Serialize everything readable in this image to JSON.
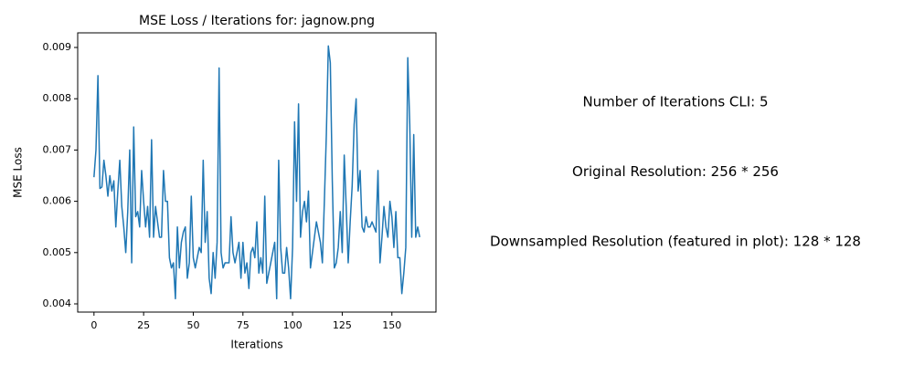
{
  "chart_data": {
    "type": "line",
    "title": "MSE Loss / Iterations for: jagnow.png",
    "xlabel": "Iterations",
    "ylabel": "MSE Loss",
    "annotations": [
      "Number of Iterations CLI: 5",
      "Original Resolution: 256 * 256",
      "Downsampled Resolution (featured in plot): 128 * 128"
    ],
    "color": "#1f77b4",
    "xlim": [
      -8.2,
      172.2
    ],
    "ylim": [
      0.00384,
      0.009285
    ],
    "xticks": [
      0,
      25,
      50,
      75,
      100,
      125,
      150
    ],
    "yticks": [
      0.004,
      0.005,
      0.006,
      0.007,
      0.008,
      0.009
    ],
    "x": [
      0,
      1,
      2,
      3,
      4,
      5,
      6,
      7,
      8,
      9,
      10,
      11,
      12,
      13,
      14,
      15,
      16,
      17,
      18,
      19,
      20,
      21,
      22,
      23,
      24,
      25,
      26,
      27,
      28,
      29,
      30,
      31,
      32,
      33,
      34,
      35,
      36,
      37,
      38,
      39,
      40,
      41,
      42,
      43,
      44,
      45,
      46,
      47,
      48,
      49,
      50,
      51,
      52,
      53,
      54,
      55,
      56,
      57,
      58,
      59,
      60,
      61,
      62,
      63,
      64,
      65,
      66,
      67,
      68,
      69,
      70,
      71,
      72,
      73,
      74,
      75,
      76,
      77,
      78,
      79,
      80,
      81,
      82,
      83,
      84,
      85,
      86,
      87,
      88,
      89,
      90,
      91,
      92,
      93,
      94,
      95,
      96,
      97,
      98,
      99,
      100,
      101,
      102,
      103,
      104,
      105,
      106,
      107,
      108,
      109,
      110,
      111,
      112,
      113,
      114,
      115,
      116,
      117,
      118,
      119,
      120,
      121,
      122,
      123,
      124,
      125,
      126,
      127,
      128,
      129,
      130,
      131,
      132,
      133,
      134,
      135,
      136,
      137,
      138,
      139,
      140,
      141,
      142,
      143,
      144,
      145,
      146,
      147,
      148,
      149,
      150,
      151,
      152,
      153,
      154,
      155,
      156,
      157,
      158,
      159,
      160,
      161,
      162,
      163,
      164
    ],
    "values": [
      0.00647,
      0.007,
      0.00845,
      0.00625,
      0.00628,
      0.0068,
      0.0065,
      0.0061,
      0.0065,
      0.0062,
      0.0064,
      0.0055,
      0.0062,
      0.0068,
      0.0059,
      0.0055,
      0.005,
      0.0058,
      0.007,
      0.0048,
      0.00745,
      0.0057,
      0.0058,
      0.0055,
      0.0066,
      0.006,
      0.0055,
      0.0059,
      0.0053,
      0.0072,
      0.0053,
      0.0059,
      0.0056,
      0.0053,
      0.0053,
      0.0066,
      0.006,
      0.006,
      0.0049,
      0.0047,
      0.0048,
      0.0041,
      0.0055,
      0.0047,
      0.0052,
      0.0054,
      0.0055,
      0.0045,
      0.0048,
      0.0061,
      0.0049,
      0.0047,
      0.0049,
      0.0051,
      0.005,
      0.0068,
      0.0052,
      0.0058,
      0.0045,
      0.0042,
      0.005,
      0.0045,
      0.0052,
      0.0086,
      0.005,
      0.0047,
      0.0048,
      0.0048,
      0.0048,
      0.0057,
      0.005,
      0.0048,
      0.005,
      0.0052,
      0.0045,
      0.0052,
      0.0046,
      0.0048,
      0.0043,
      0.005,
      0.0051,
      0.0049,
      0.0056,
      0.0046,
      0.0049,
      0.0046,
      0.0061,
      0.0044,
      0.0046,
      0.0048,
      0.005,
      0.0052,
      0.0041,
      0.0068,
      0.0051,
      0.0046,
      0.0046,
      0.0051,
      0.0047,
      0.0041,
      0.0051,
      0.00755,
      0.006,
      0.0079,
      0.0053,
      0.0058,
      0.006,
      0.0056,
      0.0062,
      0.0047,
      0.005,
      0.0053,
      0.0056,
      0.0054,
      0.0052,
      0.0048,
      0.006,
      0.0073,
      0.00903,
      0.0087,
      0.0064,
      0.0047,
      0.0048,
      0.0051,
      0.0058,
      0.005,
      0.0069,
      0.0059,
      0.0048,
      0.0056,
      0.0063,
      0.0075,
      0.008,
      0.0062,
      0.0066,
      0.0055,
      0.0054,
      0.0057,
      0.0055,
      0.0055,
      0.0056,
      0.0055,
      0.0054,
      0.0066,
      0.0048,
      0.0053,
      0.0059,
      0.0055,
      0.0053,
      0.006,
      0.0057,
      0.0051,
      0.0058,
      0.0049,
      0.0049,
      0.0042,
      0.0046,
      0.0051,
      0.0088,
      0.0075,
      0.0053,
      0.0073,
      0.0053,
      0.0055,
      0.0053
    ]
  }
}
